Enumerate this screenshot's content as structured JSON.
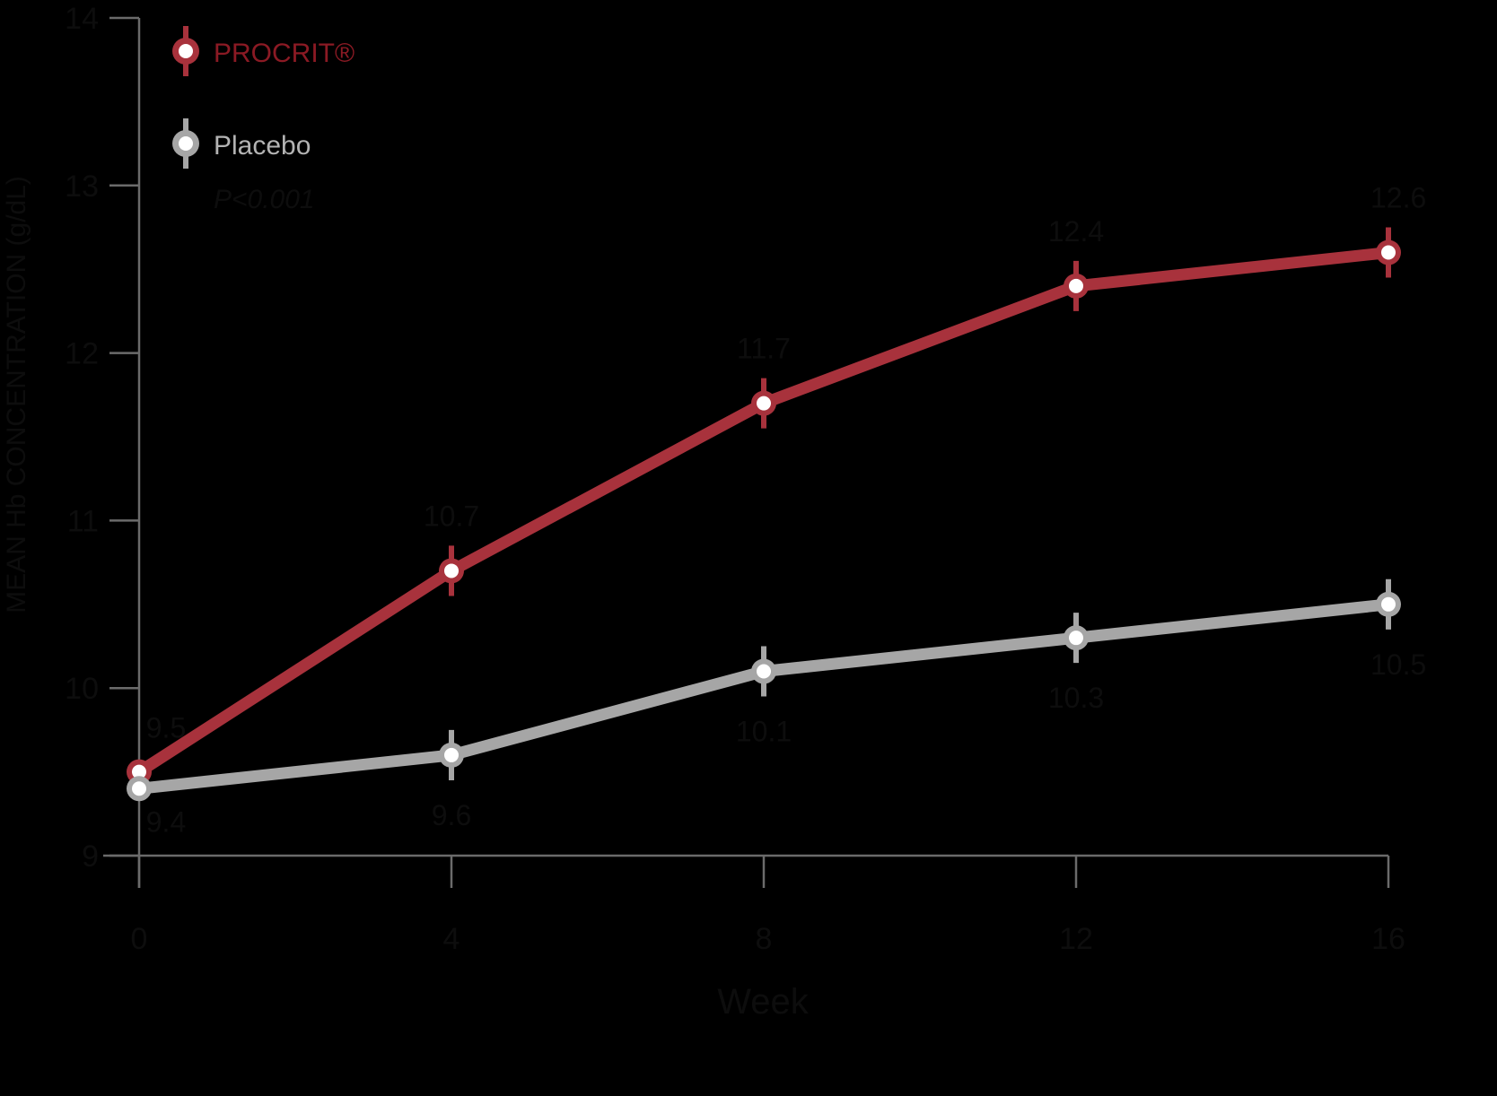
{
  "chart_data": {
    "type": "line",
    "title": "",
    "xlabel": "Week",
    "ylabel": "MEAN Hb CONCENTRATION (g/dL)",
    "x": [
      0,
      4,
      8,
      12,
      16
    ],
    "x_ticks": [
      "0",
      "4",
      "8",
      "12",
      "16"
    ],
    "y_ticks": [
      "9",
      "10",
      "11",
      "12",
      "13",
      "14"
    ],
    "xlim": [
      0,
      16
    ],
    "ylim": [
      9,
      14
    ],
    "grid": false,
    "legend_position": "top-left",
    "error_bars": true,
    "series": [
      {
        "name": "PROCRIT®",
        "color": "#a8323c",
        "label_color": "#8b1a24",
        "values": [
          9.5,
          10.7,
          11.7,
          12.4,
          12.6
        ],
        "error": 0.15,
        "label_position": "above"
      },
      {
        "name": "Placebo",
        "color": "#a6a6a6",
        "label_color": "#b3b3b3",
        "values": [
          9.4,
          9.6,
          10.1,
          10.3,
          10.5
        ],
        "error": 0.15,
        "label_position": "below"
      }
    ],
    "annotations": [
      {
        "text": "P<0.001",
        "position": "below legend"
      }
    ]
  },
  "colors": {
    "background": "#000000",
    "axis": "#6b6b6b",
    "dim_text": "#0d0d0d",
    "marker_fill": "#ffffff"
  }
}
